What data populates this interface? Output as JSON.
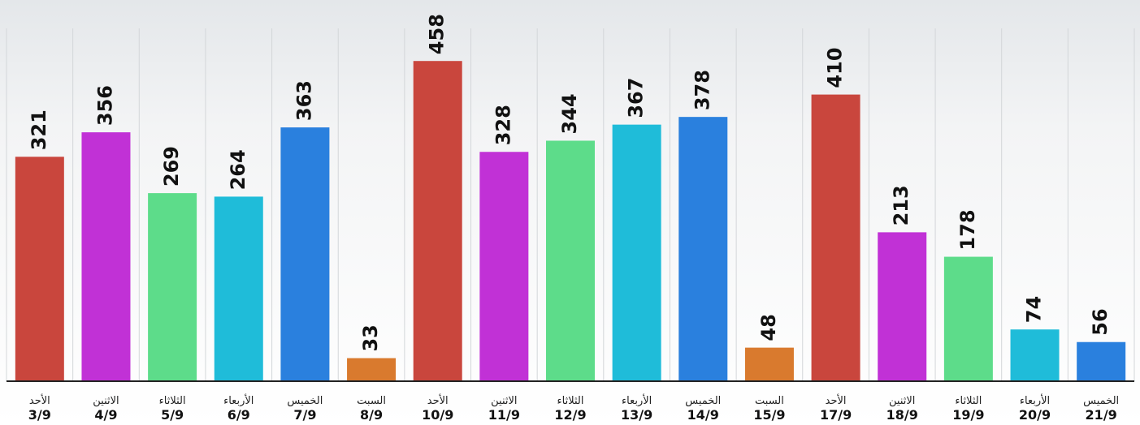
{
  "chart_data": {
    "type": "bar",
    "categories": [
      "3/9",
      "4/9",
      "5/9",
      "6/9",
      "7/9",
      "8/9",
      "10/9",
      "11/9",
      "12/9",
      "13/9",
      "14/9",
      "15/9",
      "17/9",
      "18/9",
      "19/9",
      "20/9",
      "21/9"
    ],
    "day_names": [
      "الأحد",
      "الاثنين",
      "الثلاثاء",
      "الأربعاء",
      "الخميس",
      "السبت",
      "الأحد",
      "الاثنين",
      "الثلاثاء",
      "الأربعاء",
      "الخميس",
      "السبت",
      "الأحد",
      "الاثنين",
      "الثلاثاء",
      "الأربعاء",
      "الخميس"
    ],
    "values": [
      321,
      356,
      269,
      264,
      363,
      33,
      458,
      328,
      344,
      367,
      378,
      48,
      410,
      213,
      178,
      74,
      56
    ],
    "colors": [
      "#c9463d",
      "#c131d6",
      "#5ddc8a",
      "#1fbcd9",
      "#2a80de",
      "#d97a2e",
      "#c9463d",
      "#c131d6",
      "#5ddc8a",
      "#1fbcd9",
      "#2a80de",
      "#d97a2e",
      "#c9463d",
      "#c131d6",
      "#5ddc8a",
      "#1fbcd9",
      "#2a80de"
    ],
    "ylim": [
      0,
      500
    ]
  }
}
